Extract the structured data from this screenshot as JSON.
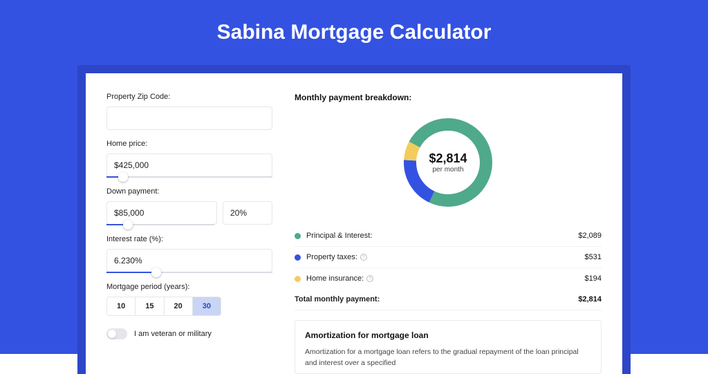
{
  "page": {
    "title": "Sabina Mortgage Calculator",
    "background_color": "#3452e1",
    "shadow_color": "#2d46c8",
    "card_color": "#ffffff"
  },
  "form": {
    "zip": {
      "label": "Property Zip Code:",
      "value": ""
    },
    "home_price": {
      "label": "Home price:",
      "value": "$425,000",
      "slider_pct": 10
    },
    "down_payment": {
      "label": "Down payment:",
      "value": "$85,000",
      "pct_value": "20%",
      "slider_pct": 20
    },
    "interest_rate": {
      "label": "Interest rate (%):",
      "value": "6.230%",
      "slider_pct": 30
    },
    "mortgage_period": {
      "label": "Mortgage period (years):",
      "options": [
        "10",
        "15",
        "20",
        "30"
      ],
      "selected": "30"
    },
    "veteran": {
      "label": "I am veteran or military",
      "checked": false
    }
  },
  "breakdown": {
    "heading": "Monthly payment breakdown:",
    "donut": {
      "amount": "$2,814",
      "sub": "per month",
      "radius": 55,
      "stroke": 18,
      "segments": [
        {
          "key": "taxes",
          "fraction": 0.189,
          "color": "#3452e1"
        },
        {
          "key": "insurance",
          "fraction": 0.069,
          "color": "#f2cd5d"
        },
        {
          "key": "pi",
          "fraction": 0.742,
          "color": "#4fa98b"
        }
      ],
      "start_angle_deg": -155,
      "bg_color": "#ffffff"
    },
    "rows": [
      {
        "label": "Principal & Interest:",
        "value": "$2,089",
        "color": "#4fa98b",
        "info": false
      },
      {
        "label": "Property taxes:",
        "value": "$531",
        "color": "#3452e1",
        "info": true
      },
      {
        "label": "Home insurance:",
        "value": "$194",
        "color": "#f2cd5d",
        "info": true
      }
    ],
    "total": {
      "label": "Total monthly payment:",
      "value": "$2,814"
    }
  },
  "amortization": {
    "title": "Amortization for mortgage loan",
    "body": "Amortization for a mortgage loan refers to the gradual repayment of the loan principal and interest over a specified"
  }
}
